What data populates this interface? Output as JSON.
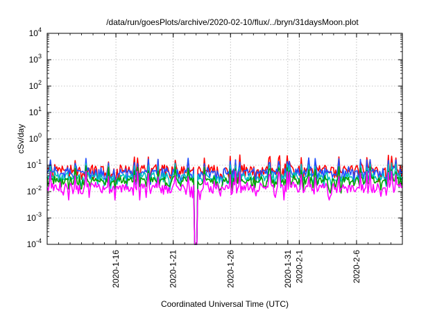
{
  "chart_data": {
    "type": "line",
    "title": "/data/run/goesPlots/archive/2020-02-10/flux/../bryn/31daysMoon.plot",
    "xlabel": "Coordinated Universal Time (UTC)",
    "ylabel": "cSv/day",
    "yscale": "log",
    "ylim": [
      0.0001,
      10000
    ],
    "xlim": [
      "2020-01-10",
      "2020-02-10"
    ],
    "grid": true,
    "y_ticks": [
      {
        "value": 0.0001,
        "base": "10",
        "exp": "-4"
      },
      {
        "value": 0.001,
        "base": "10",
        "exp": "-3"
      },
      {
        "value": 0.01,
        "base": "10",
        "exp": "-2"
      },
      {
        "value": 0.1,
        "base": "10",
        "exp": "-1"
      },
      {
        "value": 1,
        "base": "10",
        "exp": "0"
      },
      {
        "value": 10,
        "base": "10",
        "exp": "1"
      },
      {
        "value": 100,
        "base": "10",
        "exp": "2"
      },
      {
        "value": 1000,
        "base": "10",
        "exp": "3"
      },
      {
        "value": 10000,
        "base": "10",
        "exp": "4"
      }
    ],
    "x_ticks": [
      {
        "date": "2020-01-16",
        "label": "2020-1-16"
      },
      {
        "date": "2020-01-21",
        "label": "2020-1-21"
      },
      {
        "date": "2020-01-26",
        "label": "2020-1-26"
      },
      {
        "date": "2020-01-31",
        "label": "2020-1-31"
      },
      {
        "date": "2020-02-01",
        "label": "2020-2-1"
      },
      {
        "date": "2020-02-06",
        "label": "2020-2-6"
      }
    ],
    "dropout": {
      "start": "2020-01-22T19:00",
      "end": "2020-01-23T02:00"
    },
    "series": [
      {
        "color": "#ff0000",
        "level": 0.055,
        "spread": 0.22,
        "spike": 0.18
      },
      {
        "color": "#1f4fff",
        "level": 0.045,
        "spread": 0.2,
        "spike": 0.15
      },
      {
        "color": "#00c0c0",
        "level": 0.03,
        "spread": 0.14,
        "spike": 0.09
      },
      {
        "color": "#00a000",
        "level": 0.022,
        "spread": 0.16,
        "spike": 0.07
      },
      {
        "color": "#ff00ff",
        "level": 0.012,
        "spread": 0.2,
        "spike": 0.05
      }
    ]
  }
}
